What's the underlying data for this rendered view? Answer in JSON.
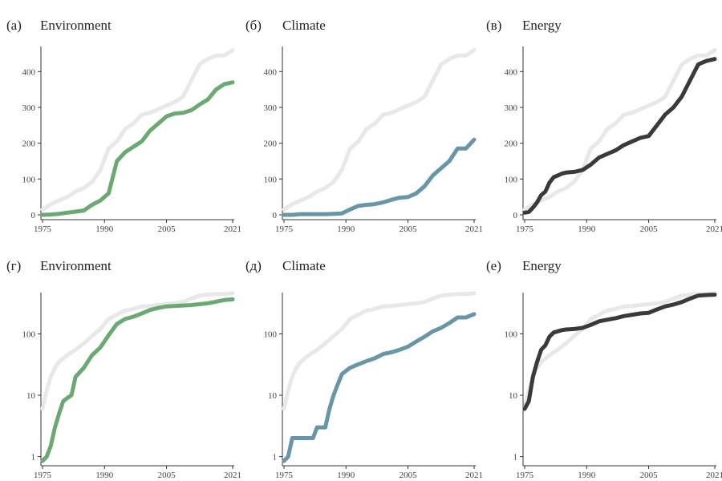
{
  "figure": {
    "panels_note": ""
  },
  "colors": {
    "environment": "#6aaa72",
    "climate": "#6896a8",
    "energy": "#3a3a3a",
    "reference": "#e8e8e8"
  },
  "chart_data": [
    {
      "id": "a",
      "letter": "(а)",
      "title": "Environment",
      "type": "line",
      "scale": "linear",
      "xlim": [
        1975,
        2021
      ],
      "ylim": [
        0,
        470
      ],
      "xticks": [
        1975,
        1990,
        2005,
        2021
      ],
      "yticks": [
        0,
        100,
        200,
        300,
        400
      ],
      "ytick_labels": [
        "0",
        "100",
        "200",
        "300",
        "400"
      ],
      "color": "environment",
      "series": [
        {
          "role": "reference",
          "x": [
            1975,
            1977,
            1979,
            1981,
            1983,
            1985,
            1987,
            1989,
            1991,
            1993,
            1995,
            1997,
            1999,
            2001,
            2003,
            2005,
            2007,
            2009,
            2011,
            2013,
            2015,
            2017,
            2019,
            2021
          ],
          "y": [
            15,
            30,
            40,
            50,
            65,
            75,
            92,
            125,
            185,
            205,
            240,
            255,
            280,
            285,
            295,
            305,
            315,
            330,
            375,
            420,
            435,
            445,
            445,
            460
          ]
        },
        {
          "role": "main",
          "x": [
            1975,
            1977,
            1979,
            1981,
            1983,
            1985,
            1987,
            1989,
            1991,
            1993,
            1995,
            1997,
            1999,
            2001,
            2003,
            2005,
            2007,
            2009,
            2011,
            2013,
            2015,
            2017,
            2019,
            2021
          ],
          "y": [
            0,
            1,
            3,
            6,
            9,
            12,
            28,
            40,
            60,
            150,
            175,
            190,
            205,
            235,
            255,
            275,
            283,
            285,
            292,
            308,
            322,
            350,
            365,
            370
          ]
        }
      ]
    },
    {
      "id": "b",
      "letter": "(б)",
      "title": "Climate",
      "type": "line",
      "scale": "linear",
      "xlim": [
        1975,
        2021
      ],
      "ylim": [
        0,
        470
      ],
      "xticks": [
        1975,
        1990,
        2005,
        2021
      ],
      "yticks": [
        0,
        100,
        200,
        300,
        400
      ],
      "ytick_labels": [
        "0",
        "100",
        "200",
        "300",
        "400"
      ],
      "color": "climate",
      "series": [
        {
          "role": "reference",
          "x": [
            1975,
            1977,
            1979,
            1981,
            1983,
            1985,
            1987,
            1989,
            1991,
            1993,
            1995,
            1997,
            1999,
            2001,
            2003,
            2005,
            2007,
            2009,
            2011,
            2013,
            2015,
            2017,
            2019,
            2021
          ],
          "y": [
            15,
            30,
            40,
            50,
            65,
            75,
            92,
            125,
            185,
            205,
            240,
            255,
            280,
            285,
            295,
            305,
            315,
            330,
            375,
            420,
            435,
            445,
            445,
            460
          ]
        },
        {
          "role": "main",
          "x": [
            1975,
            1977,
            1979,
            1981,
            1983,
            1985,
            1987,
            1989,
            1991,
            1993,
            1995,
            1997,
            1999,
            2001,
            2003,
            2005,
            2007,
            2009,
            2011,
            2013,
            2015,
            2017,
            2019,
            2021
          ],
          "y": [
            0,
            0,
            2,
            2,
            2,
            2,
            3,
            4,
            15,
            25,
            28,
            30,
            35,
            42,
            48,
            50,
            60,
            80,
            110,
            130,
            150,
            185,
            185,
            210
          ]
        }
      ]
    },
    {
      "id": "c",
      "letter": "(в)",
      "title": "Energy",
      "type": "line",
      "scale": "linear",
      "xlim": [
        1975,
        2021
      ],
      "ylim": [
        0,
        470
      ],
      "xticks": [
        1975,
        1990,
        2005,
        2021
      ],
      "yticks": [
        0,
        100,
        200,
        300,
        400
      ],
      "ytick_labels": [
        "0",
        "100",
        "200",
        "300",
        "400"
      ],
      "color": "energy",
      "series": [
        {
          "role": "reference",
          "x": [
            1975,
            1977,
            1979,
            1981,
            1983,
            1985,
            1987,
            1989,
            1991,
            1993,
            1995,
            1997,
            1999,
            2001,
            2003,
            2005,
            2007,
            2009,
            2011,
            2013,
            2015,
            2017,
            2019,
            2021
          ],
          "y": [
            15,
            30,
            40,
            50,
            65,
            75,
            92,
            125,
            185,
            205,
            240,
            255,
            280,
            285,
            295,
            305,
            315,
            330,
            375,
            420,
            435,
            445,
            445,
            460
          ]
        },
        {
          "role": "main",
          "x": [
            1975,
            1976,
            1977,
            1978,
            1979,
            1980,
            1981,
            1982,
            1983,
            1984,
            1985,
            1987,
            1989,
            1991,
            1993,
            1995,
            1997,
            1999,
            2001,
            2003,
            2005,
            2007,
            2009,
            2011,
            2013,
            2015,
            2017,
            2019,
            2021
          ],
          "y": [
            6,
            8,
            20,
            35,
            55,
            65,
            90,
            105,
            110,
            115,
            118,
            120,
            125,
            140,
            160,
            170,
            180,
            195,
            205,
            215,
            220,
            250,
            280,
            300,
            330,
            375,
            420,
            430,
            435
          ]
        }
      ]
    },
    {
      "id": "d",
      "letter": "(г)",
      "title": "Environment",
      "type": "line",
      "scale": "log",
      "xlim": [
        1975,
        2021
      ],
      "ylim": [
        0.85,
        470
      ],
      "xticks": [
        1975,
        1990,
        2005,
        2021
      ],
      "yticks": [
        1,
        10,
        100
      ],
      "ytick_labels": [
        "1",
        "10",
        "100"
      ],
      "color": "environment",
      "series": [
        {
          "role": "reference",
          "x": [
            1975,
            1976,
            1977,
            1978,
            1979,
            1981,
            1983,
            1985,
            1987,
            1989,
            1991,
            1993,
            1995,
            1997,
            1999,
            2001,
            2003,
            2005,
            2007,
            2009,
            2011,
            2013,
            2015,
            2017,
            2019,
            2021
          ],
          "y": [
            6,
            12,
            20,
            28,
            35,
            45,
            55,
            70,
            92,
            120,
            175,
            205,
            240,
            255,
            280,
            285,
            295,
            305,
            315,
            330,
            375,
            420,
            435,
            445,
            445,
            460
          ]
        },
        {
          "role": "main",
          "x": [
            1975,
            1976,
            1977,
            1978,
            1979,
            1980,
            1981,
            1982,
            1983,
            1985,
            1987,
            1989,
            1991,
            1993,
            1995,
            1997,
            1999,
            2001,
            2003,
            2005,
            2007,
            2009,
            2011,
            2013,
            2015,
            2017,
            2019,
            2021
          ],
          "y": [
            0.85,
            1,
            1.5,
            3,
            5,
            8,
            9,
            10,
            20,
            28,
            45,
            60,
            95,
            145,
            175,
            190,
            215,
            245,
            265,
            280,
            285,
            290,
            295,
            305,
            315,
            335,
            355,
            365
          ]
        }
      ]
    },
    {
      "id": "e",
      "letter": "(д)",
      "title": "Climate",
      "type": "line",
      "scale": "log",
      "xlim": [
        1975,
        2021
      ],
      "ylim": [
        0.85,
        470
      ],
      "xticks": [
        1975,
        1990,
        2005,
        2021
      ],
      "yticks": [
        1,
        10,
        100
      ],
      "ytick_labels": [
        "1",
        "10",
        "100"
      ],
      "color": "climate",
      "series": [
        {
          "role": "reference",
          "x": [
            1975,
            1976,
            1977,
            1978,
            1979,
            1981,
            1983,
            1985,
            1987,
            1989,
            1991,
            1993,
            1995,
            1997,
            1999,
            2001,
            2003,
            2005,
            2007,
            2009,
            2011,
            2013,
            2015,
            2017,
            2019,
            2021
          ],
          "y": [
            6,
            12,
            20,
            28,
            35,
            45,
            55,
            70,
            92,
            120,
            175,
            205,
            240,
            255,
            280,
            285,
            295,
            305,
            315,
            330,
            375,
            420,
            435,
            445,
            445,
            460
          ]
        },
        {
          "role": "main",
          "x": [
            1975,
            1976,
            1977,
            1978,
            1980,
            1982,
            1983,
            1984,
            1985,
            1986,
            1987,
            1988,
            1989,
            1990,
            1991,
            1993,
            1995,
            1997,
            1999,
            2001,
            2003,
            2005,
            2007,
            2009,
            2011,
            2013,
            2015,
            2017,
            2019,
            2021
          ],
          "y": [
            0.85,
            1,
            2,
            2,
            2,
            2,
            3,
            3,
            3,
            6,
            10,
            15,
            22,
            25,
            28,
            32,
            36,
            40,
            47,
            50,
            55,
            62,
            75,
            90,
            110,
            125,
            150,
            185,
            185,
            210
          ]
        }
      ]
    },
    {
      "id": "f",
      "letter": "(е)",
      "title": "Energy",
      "type": "line",
      "scale": "log",
      "xlim": [
        1975,
        2021
      ],
      "ylim": [
        0.85,
        470
      ],
      "xticks": [
        1975,
        1990,
        2005,
        2021
      ],
      "yticks": [
        1,
        10,
        100
      ],
      "ytick_labels": [
        "1",
        "10",
        "100"
      ],
      "color": "energy",
      "series": [
        {
          "role": "reference",
          "x": [
            1975,
            1976,
            1977,
            1978,
            1979,
            1981,
            1983,
            1985,
            1987,
            1989,
            1991,
            1993,
            1995,
            1997,
            1999,
            2001,
            2003,
            2005,
            2007,
            2009,
            2011,
            2013,
            2015,
            2017,
            2019,
            2021
          ],
          "y": [
            6,
            12,
            20,
            28,
            35,
            45,
            55,
            70,
            92,
            120,
            175,
            205,
            240,
            255,
            280,
            285,
            295,
            305,
            315,
            330,
            375,
            420,
            435,
            445,
            445,
            460
          ]
        },
        {
          "role": "main",
          "x": [
            1975,
            1976,
            1977,
            1978,
            1979,
            1980,
            1981,
            1982,
            1983,
            1984,
            1985,
            1987,
            1989,
            1991,
            1993,
            1995,
            1997,
            1999,
            2001,
            2003,
            2005,
            2007,
            2009,
            2011,
            2013,
            2015,
            2017,
            2019,
            2021
          ],
          "y": [
            6,
            8,
            20,
            35,
            55,
            65,
            90,
            105,
            110,
            115,
            118,
            120,
            125,
            140,
            160,
            170,
            180,
            195,
            205,
            215,
            220,
            250,
            280,
            300,
            330,
            375,
            420,
            430,
            435
          ]
        }
      ]
    }
  ]
}
